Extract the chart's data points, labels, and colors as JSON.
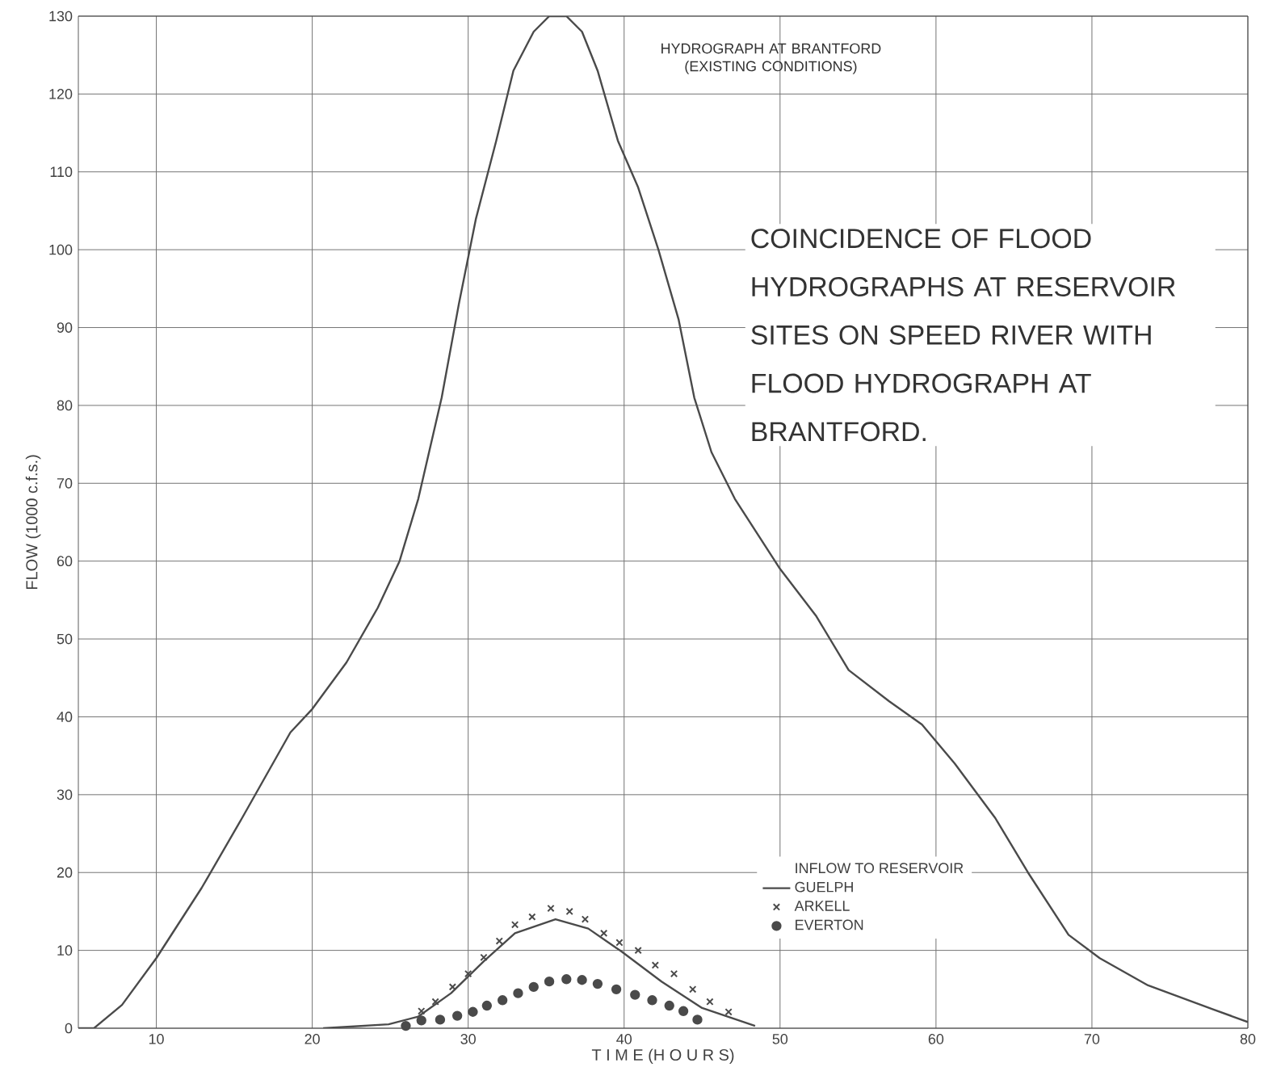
{
  "chart_data": {
    "type": "line",
    "title": "COINCIDENCE OF FLOOD HYDROGRAPHS AT RESERVOIR SITES ON SPEED RIVER WITH FLOOD HYDROGRAPH AT BRANTFORD.",
    "xlabel": "T I M E (H O U R S)",
    "ylabel": "FLOW (1000 c.f.s.)",
    "legend_title": "INFLOW TO RESERVOIR",
    "legend": "bottom right",
    "grid": true,
    "xlim": [
      5,
      80
    ],
    "xticks": [
      10,
      20,
      30,
      40,
      50,
      60,
      70,
      80
    ],
    "ylim": [
      0,
      130
    ],
    "yticks": [
      0,
      10,
      20,
      30,
      40,
      50,
      60,
      70,
      80,
      90,
      100,
      110,
      120,
      130
    ],
    "annotations": [
      "HYDROGRAPH AT BRANTFORD (EXISTING CONDITIONS)"
    ],
    "series": [
      {
        "color": "#4a4a4a",
        "x": [
          5,
          6,
          7.8,
          10,
          12.9,
          15.5,
          18.6,
          20,
          22.2,
          24.2,
          25.6,
          26.8,
          28.3,
          29.4,
          30.5,
          31.8,
          32.9,
          34.2,
          35.2,
          36.3,
          37.3,
          38.3,
          39.6,
          40.9,
          42.2,
          43.5,
          44.5,
          45.6,
          47.1,
          50,
          52.3,
          54.4,
          57,
          59.1,
          61.2,
          63.8,
          65.9,
          68.5,
          70.5,
          73.6,
          77.8,
          80
        ],
        "values": [
          0,
          0,
          3,
          9,
          18,
          27,
          38,
          41,
          47,
          54,
          60,
          68,
          81,
          93,
          104,
          114,
          123,
          128,
          130,
          130,
          128,
          123,
          114,
          108,
          100,
          91,
          81,
          74,
          68,
          59,
          53,
          46,
          42,
          39,
          34,
          27,
          20,
          12,
          9,
          5.5,
          2.4,
          0.8
        ]
      },
      {
        "name": "GUELPH",
        "color": "#4a4a4a",
        "x": [
          20.7,
          24.9,
          26.8,
          28.9,
          31,
          33,
          35.6,
          37.7,
          39.8,
          42.4,
          45,
          48.4
        ],
        "values": [
          0,
          0.5,
          1.5,
          4.5,
          8.6,
          12.2,
          14,
          12.8,
          9.9,
          6,
          2.6,
          0.3
        ]
      },
      {
        "name": "ARKELL",
        "type": "scatter",
        "marker": "cross",
        "color": "#4a4a4a",
        "x": [
          27,
          27.9,
          29,
          30,
          31,
          32,
          33,
          34.1,
          35.3,
          36.5,
          37.5,
          38.7,
          39.7,
          40.9,
          42,
          43.2,
          44.4,
          45.5,
          46.7
        ],
        "values": [
          2.2,
          3.4,
          5.3,
          7,
          9.1,
          11.2,
          13.3,
          14.3,
          15.4,
          15,
          14,
          12.2,
          11,
          10,
          8.1,
          7,
          5,
          3.4,
          2.1
        ]
      },
      {
        "name": "EVERTON",
        "type": "scatter",
        "marker": "circle",
        "color": "#4a4a4a",
        "x": [
          26,
          27,
          28.2,
          29.3,
          30.3,
          31.2,
          32.2,
          33.2,
          34.2,
          35.2,
          36.3,
          37.3,
          38.3,
          39.5,
          40.7,
          41.8,
          42.9,
          43.8,
          44.7
        ],
        "values": [
          0.3,
          1,
          1.1,
          1.6,
          2.1,
          2.9,
          3.6,
          4.5,
          5.3,
          6,
          6.3,
          6.2,
          5.7,
          5,
          4.3,
          3.6,
          2.9,
          2.2,
          1.1
        ]
      }
    ]
  }
}
